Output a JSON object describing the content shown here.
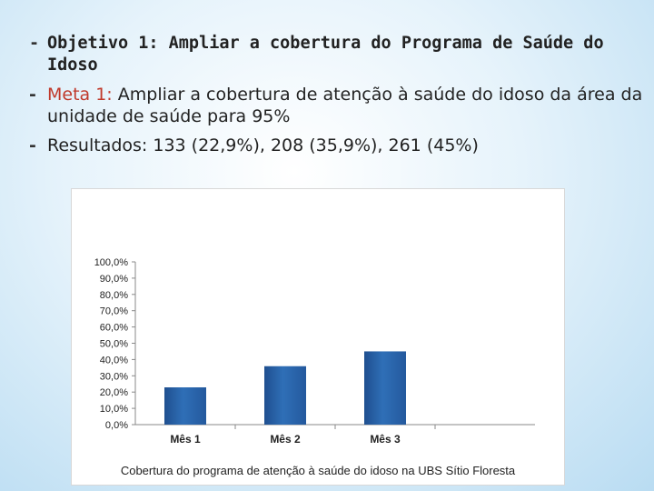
{
  "bullets": [
    {
      "text": "Objetivo 1: Ampliar a cobertura do Programa de Saúde do Idoso"
    },
    {
      "label": "Meta 1:",
      "text": " Ampliar a cobertura de atenção à saúde do idoso da área da unidade de saúde para 95%"
    },
    {
      "text": "Resultados: 133 (22,9%), 208 (35,9%), 261 (45%)"
    }
  ],
  "chart_data": {
    "type": "bar",
    "categories": [
      "Mês 1",
      "Mês 2",
      "Mês 3",
      ""
    ],
    "values": [
      22.9,
      35.9,
      45.0,
      0
    ],
    "ylim": [
      0,
      100
    ],
    "yticks": [
      "0,0%",
      "10,0%",
      "20,0%",
      "30,0%",
      "40,0%",
      "50,0%",
      "60,0%",
      "70,0%",
      "80,0%",
      "90,0%",
      "100,0%"
    ],
    "bar_color": "#2f6fb7",
    "title": "",
    "xlabel": "",
    "ylabel": "",
    "grid": false,
    "caption": "Cobertura do programa de atenção à saúde do idoso na UBS Sítio Floresta"
  }
}
